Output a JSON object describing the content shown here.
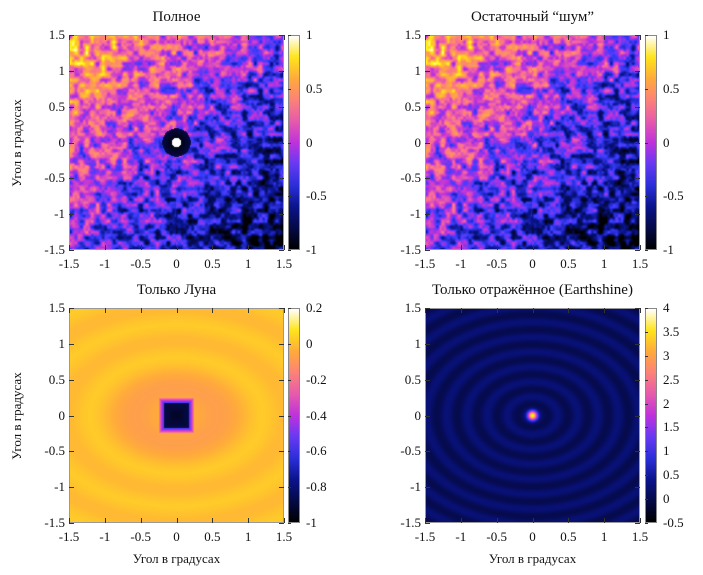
{
  "chart_data": [
    {
      "type": "heatmap",
      "title": "Полное",
      "xlabel": "",
      "ylabel": "Угол в градусах",
      "xlim": [
        -1.5,
        1.5
      ],
      "ylim": [
        -1.5,
        1.5
      ],
      "x_ticks": [
        "-1.5",
        "-1",
        "-0.5",
        "0",
        "0.5",
        "1",
        "1.5"
      ],
      "y_ticks": [
        "1.5",
        "1",
        "0.5",
        "0",
        "-0.5",
        "-1",
        "-1.5"
      ],
      "colorbar": {
        "range": [
          -1,
          1
        ],
        "ticks": [
          "1",
          "0.5",
          "0",
          "-0.5",
          "-1"
        ],
        "palette": "black-blue-purple-orange-yellow-white"
      },
      "pattern": "noise_with_central_peak"
    },
    {
      "type": "heatmap",
      "title": "Остаточный “шум”",
      "xlabel": "",
      "ylabel": "",
      "xlim": [
        -1.5,
        1.5
      ],
      "ylim": [
        -1.5,
        1.5
      ],
      "x_ticks": [
        "-1.5",
        "-1",
        "-0.5",
        "0",
        "0.5",
        "1",
        "1.5"
      ],
      "y_ticks": [
        "1.5",
        "1",
        "0.5",
        "0",
        "-0.5",
        "-1",
        "-1.5"
      ],
      "colorbar": {
        "range": [
          -1,
          1
        ],
        "ticks": [
          "1",
          "0.5",
          "0",
          "-0.5",
          "-1"
        ],
        "palette": "black-blue-purple-orange-yellow-white"
      },
      "pattern": "noise"
    },
    {
      "type": "heatmap",
      "title": "Только Луна",
      "xlabel": "Угол в градусах",
      "ylabel": "Угол в градусах",
      "xlim": [
        -1.5,
        1.5
      ],
      "ylim": [
        -1.5,
        1.5
      ],
      "x_ticks": [
        "-1.5",
        "-1",
        "-0.5",
        "0",
        "0.5",
        "1",
        "1.5"
      ],
      "y_ticks": [
        "1.5",
        "1",
        "0.5",
        "0",
        "-0.5",
        "-1",
        "-1.5"
      ],
      "colorbar": {
        "range": [
          -1,
          0.2
        ],
        "ticks": [
          "0.2",
          "0",
          "-0.2",
          "-0.4",
          "-0.6",
          "-0.8",
          "-1"
        ],
        "palette": "black-blue-purple-orange-yellow-white"
      },
      "pattern": "central_dip"
    },
    {
      "type": "heatmap",
      "title": "Только отражённое (Earthshine)",
      "xlabel": "Угол в градусах",
      "ylabel": "",
      "xlim": [
        -1.5,
        1.5
      ],
      "ylim": [
        -1.5,
        1.5
      ],
      "x_ticks": [
        "-1.5",
        "-1",
        "-0.5",
        "0",
        "0.5",
        "1",
        "1.5"
      ],
      "y_ticks": [
        "1.5",
        "1",
        "0.5",
        "0",
        "-0.5",
        "-1",
        "-1.5"
      ],
      "colorbar": {
        "range": [
          -0.5,
          4
        ],
        "ticks": [
          "4",
          "3.5",
          "3",
          "2.5",
          "2",
          "1.5",
          "1",
          "0.5",
          "0",
          "-0.5"
        ],
        "palette": "black-blue-purple-orange-yellow-white"
      },
      "pattern": "central_peak_rings"
    }
  ]
}
